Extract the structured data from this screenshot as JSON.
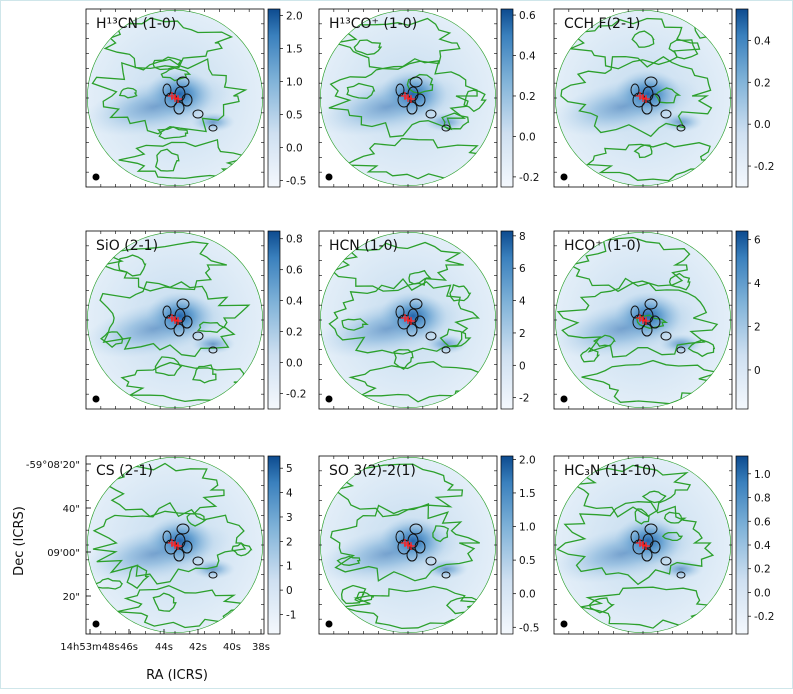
{
  "figure": {
    "xlabel": "RA (ICRS)",
    "ylabel": "Dec (ICRS)",
    "ra_ticks": [
      "14h53m48s",
      "46s",
      "44s",
      "42s",
      "40s",
      "38s"
    ],
    "dec_ticks": [
      "-59°08'20\"",
      "40\"",
      "09'00\"",
      "20\""
    ],
    "colormap": "Blues",
    "contour_color": "#2ca02c",
    "source_marker_color": "#ff2020",
    "beam_color": "#000000"
  },
  "chart_data": [
    {
      "type": "heatmap",
      "title": "H¹³CN (1-0)",
      "colorbar_ticks": [
        "-0.5",
        "0.0",
        "0.5",
        "1.0",
        "1.5",
        "2.0"
      ],
      "colorbar_range": [
        -0.6,
        2.1
      ]
    },
    {
      "type": "heatmap",
      "title": "H¹³CO⁺ (1-0)",
      "colorbar_ticks": [
        "-0.2",
        "0.0",
        "0.2",
        "0.4",
        "0.6"
      ],
      "colorbar_range": [
        -0.25,
        0.63
      ]
    },
    {
      "type": "heatmap",
      "title": "CCH F(2-1)",
      "colorbar_ticks": [
        "-0.2",
        "0.0",
        "0.2",
        "0.4"
      ],
      "colorbar_range": [
        -0.3,
        0.55
      ]
    },
    {
      "type": "heatmap",
      "title": "SiO (2-1)",
      "colorbar_ticks": [
        "-0.2",
        "0.0",
        "0.2",
        "0.4",
        "0.6",
        "0.8"
      ],
      "colorbar_range": [
        -0.3,
        0.85
      ]
    },
    {
      "type": "heatmap",
      "title": "HCN (1-0)",
      "colorbar_ticks": [
        "-2",
        "0",
        "2",
        "4",
        "6",
        "8"
      ],
      "colorbar_range": [
        -2.7,
        8.3
      ]
    },
    {
      "type": "heatmap",
      "title": "HCO⁺ (1-0)",
      "colorbar_ticks": [
        "0",
        "2",
        "4",
        "6"
      ],
      "colorbar_range": [
        -1.8,
        6.4
      ]
    },
    {
      "type": "heatmap",
      "title": "CS (2-1)",
      "colorbar_ticks": [
        "-1",
        "0",
        "1",
        "2",
        "3",
        "4",
        "5"
      ],
      "colorbar_range": [
        -1.8,
        5.5
      ]
    },
    {
      "type": "heatmap",
      "title": "SO 3(2)-2(1)",
      "colorbar_ticks": [
        "-0.5",
        "0.0",
        "0.5",
        "1.0",
        "1.5",
        "2.0"
      ],
      "colorbar_range": [
        -0.6,
        2.05
      ]
    },
    {
      "type": "heatmap",
      "title": "HC₃N (11-10)",
      "colorbar_ticks": [
        "-0.2",
        "0.0",
        "0.2",
        "0.4",
        "0.6",
        "0.8",
        "1.0"
      ],
      "colorbar_range": [
        -0.35,
        1.15
      ]
    }
  ]
}
